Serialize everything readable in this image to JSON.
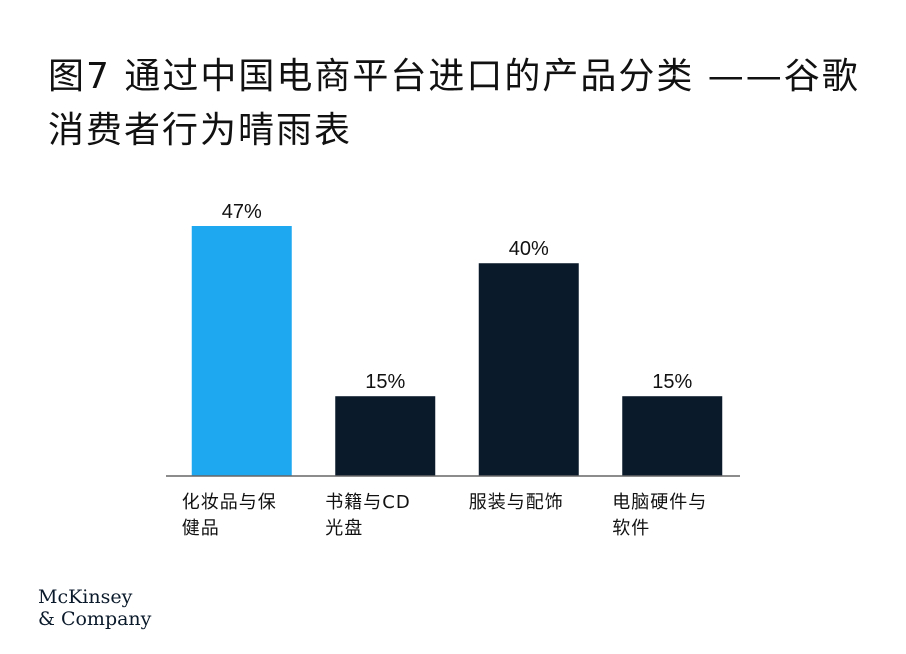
{
  "title": "图7 通过中国电商平台进口的产品分类 ——谷歌消费者行为晴雨表",
  "chart_data": {
    "type": "bar",
    "categories": [
      [
        "化妆品与保",
        "健品"
      ],
      [
        "书籍与CD",
        "光盘"
      ],
      [
        "服装与配饰"
      ],
      [
        "电脑硬件与",
        "软件"
      ]
    ],
    "values": [
      47,
      15,
      40,
      15
    ],
    "value_labels": [
      "47%",
      "15%",
      "40%",
      "15%"
    ],
    "colors": [
      "#1ea8f0",
      "#0b1a2b",
      "#0b1a2b",
      "#0b1a2b"
    ],
    "ylim": [
      0,
      50
    ],
    "grid": false,
    "legend": "none"
  },
  "logo": {
    "line1": "McKinsey",
    "line2": "& Company"
  }
}
